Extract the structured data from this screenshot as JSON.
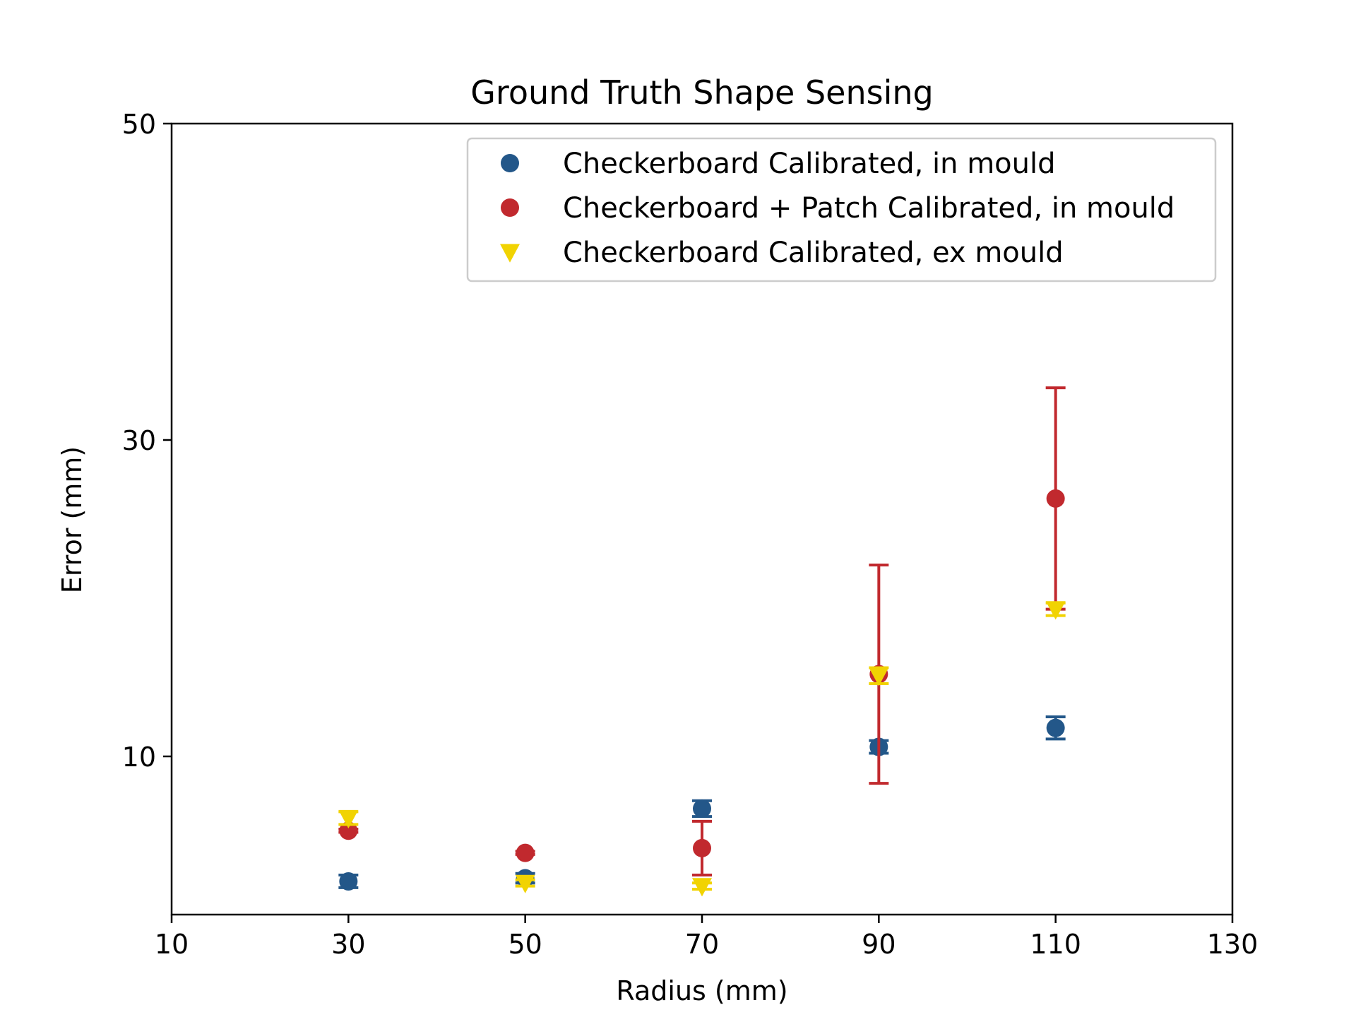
{
  "chart_data": {
    "type": "scatter",
    "title": "Ground Truth Shape Sensing",
    "xlabel": "Radius (mm)",
    "ylabel": "Error (mm)",
    "xlim": [
      10,
      130
    ],
    "ylim": [
      0,
      50
    ],
    "xticks": [
      "10",
      "30",
      "50",
      "70",
      "90",
      "110",
      "130"
    ],
    "yticks": [
      "10",
      "30",
      "50"
    ],
    "grid": false,
    "legend_position": "top-right",
    "series": [
      {
        "name": "Checkerboard Calibrated, in mould",
        "marker": "circle",
        "color": "#235789",
        "x": [
          30,
          50,
          70,
          90,
          110
        ],
        "y": [
          2.1,
          2.3,
          6.7,
          10.6,
          11.8
        ],
        "err": [
          0.4,
          0.3,
          0.5,
          0.4,
          0.7
        ]
      },
      {
        "name": "Checkerboard + Patch Calibrated, in mould",
        "marker": "circle",
        "color": "#C1292E",
        "x": [
          30,
          50,
          70,
          90,
          110
        ],
        "y": [
          5.3,
          3.9,
          4.2,
          15.2,
          26.3
        ],
        "err": [
          0.1,
          0.1,
          1.7,
          6.9,
          7.0
        ]
      },
      {
        "name": "Checkerboard Calibrated, ex mould",
        "marker": "triangle-down",
        "color": "#F1D302",
        "x": [
          30,
          50,
          70,
          90,
          110
        ],
        "y": [
          6.1,
          2.0,
          1.8,
          15.1,
          19.3
        ],
        "err": [
          0.4,
          0.2,
          0.2,
          0.5,
          0.4
        ]
      }
    ]
  }
}
